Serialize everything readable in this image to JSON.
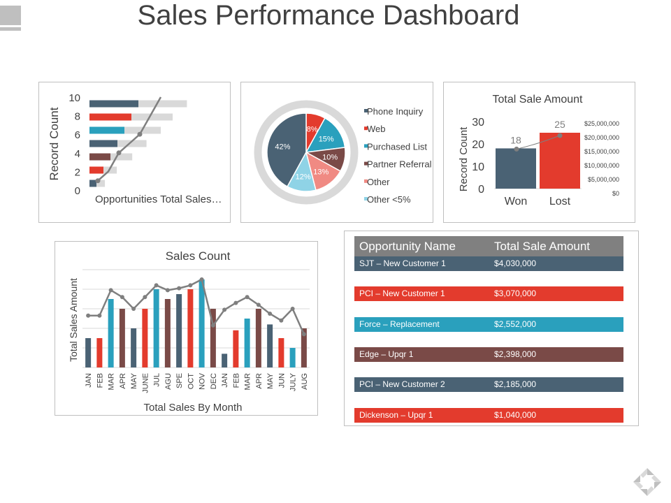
{
  "page": {
    "title": "Sales Performance Dashboard"
  },
  "chart_data": [
    {
      "type": "bar",
      "orientation": "horizontal",
      "ylabel": "Record Count",
      "xlabel": "Opportunities Total Sales…",
      "axis_ticks": [
        "10",
        "8",
        "6",
        "4",
        "2",
        "0"
      ],
      "ylim": [
        0,
        10
      ],
      "series": [
        {
          "values": [
            1,
            2,
            3,
            4,
            5,
            6,
            7
          ],
          "color": "dark"
        },
        {
          "values": [
            1.3,
            2.3,
            3.6,
            4.8,
            6.0,
            7.0,
            8.2
          ],
          "color": "light-gray"
        }
      ],
      "bar_colors": [
        "#4a6274",
        "#e33b2d",
        "#7a4a47",
        "#4a6274",
        "#2aa0bd",
        "#e33b2d",
        "#4a6274"
      ],
      "line": [
        1,
        2,
        4,
        5,
        6,
        8,
        10
      ]
    },
    {
      "type": "pie",
      "slices": [
        {
          "label": "Phone Inquiry",
          "value": 42,
          "display": "42%",
          "color": "#4a6274"
        },
        {
          "label": "Web",
          "value": 8,
          "display": "8%",
          "color": "#e33b2d"
        },
        {
          "label": "Purchased List",
          "value": 15,
          "display": "15%",
          "color": "#2aa0bd"
        },
        {
          "label": "Partner Referral",
          "value": 10,
          "display": "10%",
          "color": "#7a4a47"
        },
        {
          "label": "Other",
          "value": 13,
          "display": "13%",
          "color": "#f08a83"
        },
        {
          "label": "Other <5%",
          "value": 12,
          "display": "12%",
          "color": "#8fd3e6"
        }
      ],
      "legend_placement": "right"
    },
    {
      "type": "bar",
      "title": "Total Sale Amount",
      "ylabel": "Record Count",
      "categories": [
        "Won",
        "Lost"
      ],
      "values": [
        18,
        25
      ],
      "value_labels": [
        "18",
        "25"
      ],
      "colors": [
        "#4a6274",
        "#e33b2d"
      ],
      "ylim": [
        0,
        30
      ],
      "yticks": [
        "30",
        "20",
        "10",
        "0"
      ],
      "y2ticks": [
        "$25,000,000",
        "$20,000,000",
        "$15,000,000",
        "$10,000,000",
        "$5,000,000",
        "$0"
      ]
    },
    {
      "type": "bar",
      "title": "Sales Count",
      "xlabel": "Total Sales By Month",
      "ylabel": "Total Sales Amount",
      "categories": [
        "JAN",
        "FEB",
        "MAR",
        "APR",
        "MAY",
        "JUNE",
        "JUL",
        "AGU",
        "SPE",
        "OCT",
        "NOV",
        "DEC",
        "JAN",
        "FEB",
        "MAR",
        "APR",
        "MAY",
        "JUN",
        "JULY",
        "AUG"
      ],
      "values": [
        30,
        30,
        70,
        60,
        40,
        60,
        80,
        70,
        75,
        80,
        90,
        60,
        14,
        38,
        50,
        60,
        44,
        30,
        20,
        40
      ],
      "colors": [
        "#4a6274",
        "#e33b2d",
        "#2aa0bd",
        "#7a4a47",
        "#4a6274",
        "#e33b2d",
        "#2aa0bd",
        "#7a4a47",
        "#4a6274",
        "#e33b2d",
        "#2aa0bd",
        "#7a4a47",
        "#4a6274",
        "#e33b2d",
        "#2aa0bd",
        "#7a4a47",
        "#4a6274",
        "#e33b2d",
        "#2aa0bd",
        "#7a4a47"
      ],
      "line": [
        53,
        53,
        79,
        72,
        60,
        72,
        84,
        79,
        81,
        84,
        90,
        43,
        59,
        66,
        72,
        64,
        55,
        48,
        60,
        34
      ],
      "ylim": [
        0,
        100
      ],
      "grid": true
    }
  ],
  "table": {
    "headers": [
      "Opportunity Name",
      "Total Sale Amount"
    ],
    "rows": [
      {
        "name": "SJT – New Customer 1",
        "amount": "$4,030,000",
        "color": "#4a6274"
      },
      {
        "name": "PCI – New Customer 1",
        "amount": "$3,070,000",
        "color": "#e33b2d"
      },
      {
        "name": "Force – Replacement",
        "amount": "$2,552,000",
        "color": "#2aa0bd"
      },
      {
        "name": "Edge – Upqr 1",
        "amount": "$2,398,000",
        "color": "#7a4a47"
      },
      {
        "name": "PCI – New Customer 2",
        "amount": "$2,185,000",
        "color": "#4a6274"
      },
      {
        "name": "Dickenson – Upqr 1",
        "amount": "$1,040,000",
        "color": "#e33b2d"
      }
    ]
  },
  "icons": {
    "corner": "slide-marker-icon",
    "logo": "diamond-arrows-logo-icon"
  }
}
